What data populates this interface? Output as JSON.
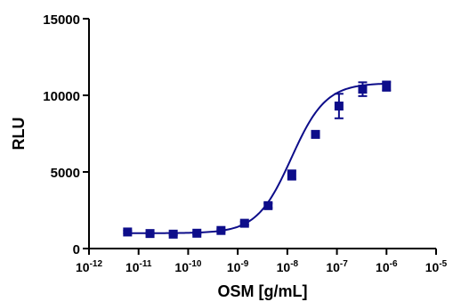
{
  "chart_data": {
    "type": "scatter",
    "xlabel": "OSM [g/mL]",
    "ylabel": "RLU",
    "x_scale": "log",
    "xlim": [
      1e-12,
      1e-05
    ],
    "ylim": [
      0,
      15000
    ],
    "y_ticks": [
      "0",
      "5000",
      "10000",
      "15000"
    ],
    "x_ticks": [
      {
        "base": "10",
        "exp": "-12"
      },
      {
        "base": "10",
        "exp": "-11"
      },
      {
        "base": "10",
        "exp": "-10"
      },
      {
        "base": "10",
        "exp": "-9"
      },
      {
        "base": "10",
        "exp": "-8"
      },
      {
        "base": "10",
        "exp": "-7"
      },
      {
        "base": "10",
        "exp": "-6"
      },
      {
        "base": "10",
        "exp": "-5"
      }
    ],
    "grid": false,
    "color": "#0d0d8a",
    "series": [
      {
        "points": [
          {
            "x": 6e-12,
            "y": 1080,
            "err": 80
          },
          {
            "x": 1.7e-11,
            "y": 980,
            "err": 60
          },
          {
            "x": 5e-11,
            "y": 940,
            "err": 60
          },
          {
            "x": 1.5e-10,
            "y": 1000,
            "err": 70
          },
          {
            "x": 4.6e-10,
            "y": 1180,
            "err": 80
          },
          {
            "x": 1.37e-09,
            "y": 1650,
            "err": 100
          },
          {
            "x": 4.1e-09,
            "y": 2800,
            "err": 150
          },
          {
            "x": 1.23e-08,
            "y": 4800,
            "err": 300
          },
          {
            "x": 3.7e-08,
            "y": 7450,
            "err": 200
          },
          {
            "x": 1.1e-07,
            "y": 9300,
            "err": 800
          },
          {
            "x": 3.3e-07,
            "y": 10400,
            "err": 450
          },
          {
            "x": 1e-06,
            "y": 10600,
            "err": 300
          }
        ]
      }
    ],
    "fit": {
      "bottom": 1000,
      "top": 10800,
      "log_ec50": -7.92,
      "hill": 1.25
    }
  }
}
